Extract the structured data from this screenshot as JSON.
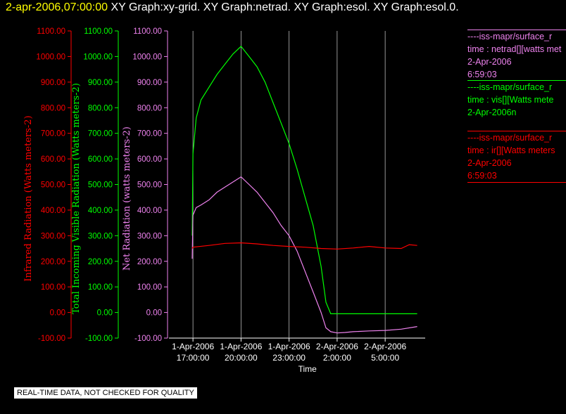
{
  "header": {
    "timestamp": "2-apr-2006,07:00:00",
    "title": "XY Graph:xy-grid.  XY Graph:netrad.  XY Graph:esol.  XY Graph:esol.0."
  },
  "legend": [
    {
      "source": "----iss-mapr/surface_r",
      "variable": "time : netrad[][watts met",
      "date": "2-Apr-2006",
      "time": "6:59:03",
      "color": "#ee82ee"
    },
    {
      "source": "----iss-mapr/surface_r",
      "variable": "time : vis[][Watts mete",
      "date": "2-Apr-2006n",
      "time": "",
      "color": "#00ff00"
    },
    {
      "source": "----iss-mapr/surface_r",
      "variable": "time : ir[][Watts meters",
      "date": "2-Apr-2006",
      "time": "6:59:03",
      "color": "#ff0000"
    }
  ],
  "notice": "REAL-TIME DATA, NOT CHECKED FOR QUALITY",
  "chart_data": {
    "type": "line",
    "xlabel": "Time",
    "x_ticks": [
      {
        "line1": "1-Apr-2006",
        "line2": "17:00:00",
        "hours": 0
      },
      {
        "line1": "1-Apr-2006",
        "line2": "20:00:00",
        "hours": 3
      },
      {
        "line1": "1-Apr-2006",
        "line2": "23:00:00",
        "hours": 6
      },
      {
        "line1": "2-Apr-2006",
        "line2": "2:00:00",
        "hours": 9
      },
      {
        "line1": "2-Apr-2006",
        "line2": "5:00:00",
        "hours": 12
      }
    ],
    "xlim_hours": [
      -1.5,
      14.5
    ],
    "grid": "vertical",
    "ylim": [
      -100,
      1100
    ],
    "y_ticks": [
      "-100.00",
      "0.00",
      "100.00",
      "200.00",
      "300.00",
      "400.00",
      "500.00",
      "600.00",
      "700.00",
      "800.00",
      "900.00",
      "1000.00",
      "1100.00"
    ],
    "axes": [
      {
        "label": "Infrared Radiation (Watts meters-2)",
        "color": "#ff0000"
      },
      {
        "label": "Total Incoming Visible Radiation (Watts meters-2)",
        "color": "#00ff00"
      },
      {
        "label": "Net Radiation (watts meters-2)",
        "color": "#ee82ee"
      }
    ],
    "series": [
      {
        "color": "#00ff00",
        "x": [
          -0.05,
          0.0,
          0.2,
          0.5,
          1.0,
          1.5,
          2.0,
          2.5,
          3.0,
          3.5,
          4.0,
          4.5,
          5.0,
          5.5,
          6.0,
          6.5,
          7.0,
          7.5,
          8.0,
          8.3,
          8.6,
          9.0,
          9.5,
          10.0,
          11.0,
          12.0,
          13.0,
          14.0
        ],
        "y": [
          300,
          620,
          760,
          830,
          880,
          930,
          970,
          1010,
          1040,
          1000,
          960,
          900,
          820,
          740,
          660,
          560,
          450,
          340,
          180,
          40,
          -5,
          -5,
          -5,
          -5,
          -5,
          -5,
          -5,
          -5
        ]
      },
      {
        "color": "#ee82ee",
        "x": [
          -0.05,
          0.0,
          0.2,
          0.5,
          1.0,
          1.5,
          2.0,
          2.5,
          3.0,
          3.5,
          4.0,
          4.5,
          5.0,
          5.5,
          6.0,
          6.5,
          7.0,
          7.5,
          8.0,
          8.3,
          8.6,
          9.0,
          9.5,
          10.0,
          11.0,
          12.0,
          13.0,
          14.0
        ],
        "y": [
          210,
          380,
          410,
          420,
          440,
          470,
          490,
          510,
          530,
          500,
          470,
          430,
          390,
          340,
          300,
          240,
          160,
          80,
          0,
          -60,
          -75,
          -80,
          -78,
          -75,
          -72,
          -70,
          -65,
          -55
        ]
      },
      {
        "color": "#ff0000",
        "x": [
          -0.05,
          0.0,
          1.0,
          2.0,
          3.0,
          4.0,
          5.0,
          6.0,
          7.0,
          8.0,
          9.0,
          10.0,
          11.0,
          12.0,
          13.0,
          13.5,
          14.0
        ],
        "y": [
          250,
          255,
          262,
          270,
          272,
          268,
          262,
          258,
          255,
          250,
          248,
          252,
          258,
          252,
          250,
          265,
          262
        ]
      }
    ]
  }
}
